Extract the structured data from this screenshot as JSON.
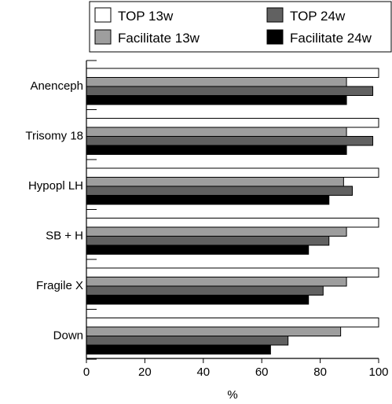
{
  "chart_data": {
    "type": "bar",
    "orientation": "horizontal",
    "categories": [
      "Anenceph",
      "Trisomy 18",
      "Hypopl LH",
      "SB + H",
      "Fragile X",
      "Down"
    ],
    "series": [
      {
        "name": "TOP 13w",
        "color": "#ffffff",
        "values": [
          100,
          100,
          100,
          100,
          100,
          100
        ]
      },
      {
        "name": "Facilitate 13w",
        "color": "#9e9e9e",
        "values": [
          89,
          89,
          88,
          89,
          89,
          87
        ]
      },
      {
        "name": "TOP 24w",
        "color": "#616161",
        "values": [
          98,
          98,
          91,
          83,
          81,
          69
        ]
      },
      {
        "name": "Facilitate 24w",
        "color": "#000000",
        "values": [
          89,
          89,
          83,
          76,
          76,
          63
        ]
      }
    ],
    "xlabel": "%",
    "ylabel": "",
    "xlim": [
      0,
      100
    ],
    "xticks": [
      "0",
      "20",
      "40",
      "60",
      "80",
      "100"
    ],
    "grid": false,
    "legend_position": "top"
  }
}
